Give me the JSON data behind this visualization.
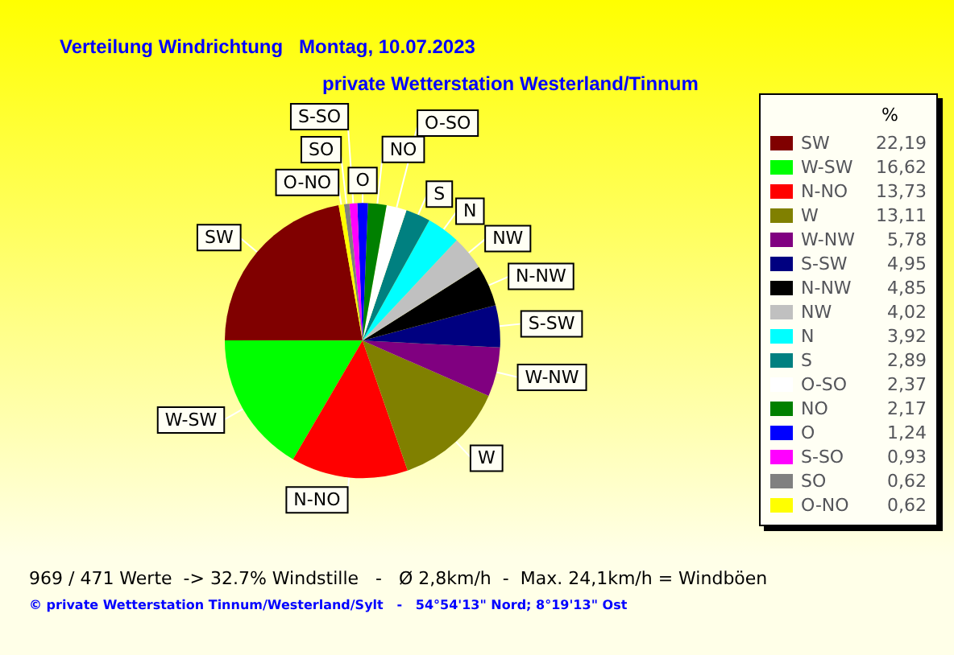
{
  "chart_data": {
    "type": "pie",
    "title": "Verteilung Windrichtung   Montag, 10.07.2023",
    "subtitle": "private Wetterstation Westerland/Tinnum",
    "legend_title": "%",
    "categories": [
      "SW",
      "W-SW",
      "N-NO",
      "W",
      "W-NW",
      "S-SW",
      "N-NW",
      "NW",
      "N",
      "S",
      "O-SO",
      "NO",
      "O",
      "S-SO",
      "SO",
      "O-NO"
    ],
    "values": [
      22.19,
      16.62,
      13.73,
      13.11,
      5.78,
      4.95,
      4.85,
      4.02,
      3.92,
      2.89,
      2.37,
      2.17,
      1.24,
      0.93,
      0.62,
      0.62
    ],
    "colors": [
      "#800000",
      "#00ff00",
      "#ff0000",
      "#808000",
      "#800080",
      "#000080",
      "#000000",
      "#c0c0c0",
      "#00ffff",
      "#008080",
      "#ffffff",
      "#008000",
      "#0000ff",
      "#ff00ff",
      "#808080",
      "#ffff00"
    ],
    "value_labels": [
      "22,19",
      "16,62",
      "13,73",
      "13,11",
      "5,78",
      "4,95",
      "4,85",
      "4,02",
      "3,92",
      "2,89",
      "2,37",
      "2,17",
      "1,24",
      "0,93",
      "0,62",
      "0,62"
    ],
    "legend": "right",
    "annotations": [
      "969 / 471 Werte  -> 32.7% Windstille   -   Ø 2,8km/h  -  Max. 24,1km/h = Windböen",
      "© private Wetterstation Tinnum/Westerland/Sylt   -   54°54'13\" Nord; 8°19'13\" Ost"
    ]
  }
}
